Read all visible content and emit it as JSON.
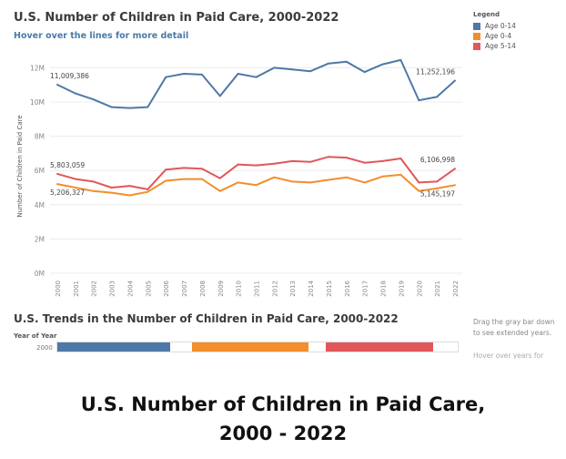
{
  "dashboard": {
    "title": "U.S. Number of Children in Paid Care, 2000-2022",
    "hover_hint": "Hover over the lines for more detail",
    "legend_title": "Legend",
    "legend": [
      {
        "label": "Age 0-14",
        "color": "#4e79a7"
      },
      {
        "label": "Age 0-4",
        "color": "#f28e2b"
      },
      {
        "label": "Age 5-14",
        "color": "#e15759"
      }
    ],
    "trend_title": "U.S. Trends in the Number of Children in Paid Care, 2000-2022",
    "year_of_year_label": "Year of Year",
    "timeline_year": "2000",
    "timeline_colors": [
      "#4e79a7",
      "#f28e2b",
      "#e15759"
    ],
    "drag_hint": "Drag the gray bar down to see extended years.",
    "drag_hint_cut": "Hover over years for more",
    "y_axis_title": "Number of Children in Paid Care"
  },
  "caption": {
    "line1": "U.S. Number of Children in Paid Care,",
    "line2": "2000 - 2022"
  },
  "chart_data": {
    "type": "line",
    "title": "U.S. Number of Children in Paid Care, 2000-2022",
    "ylabel": "Number of Children in Paid Care",
    "xlabel": "",
    "ylim": [
      0,
      12500000
    ],
    "yticks": [
      0,
      2000000,
      4000000,
      6000000,
      8000000,
      10000000,
      12000000
    ],
    "ytick_labels": [
      "0M",
      "2M",
      "4M",
      "6M",
      "8M",
      "10M",
      "12M"
    ],
    "grid": true,
    "legend_position": "top-right",
    "x": [
      "2000",
      "2001",
      "2002",
      "2003",
      "2004",
      "2005",
      "2006",
      "2007",
      "2008",
      "2009",
      "2010",
      "2011",
      "2012",
      "2013",
      "2014",
      "2015",
      "2016",
      "2017",
      "2018",
      "2019",
      "2020",
      "2021",
      "2022"
    ],
    "series": [
      {
        "name": "Age 0-14",
        "color": "#4e79a7",
        "values": [
          11009386,
          10500000,
          10150000,
          9700000,
          9650000,
          9700000,
          11450000,
          11650000,
          11600000,
          10350000,
          11650000,
          11450000,
          12000000,
          11900000,
          11800000,
          12250000,
          12350000,
          11750000,
          12200000,
          12450000,
          10100000,
          10300000,
          11252196
        ],
        "labels": [
          {
            "index": 0,
            "text": "11,009,386"
          },
          {
            "index": 22,
            "text": "11,252,196"
          }
        ]
      },
      {
        "name": "Age 5-14",
        "color": "#e15759",
        "values": [
          5803059,
          5500000,
          5350000,
          5000000,
          5100000,
          4900000,
          6050000,
          6150000,
          6100000,
          5550000,
          6350000,
          6300000,
          6400000,
          6550000,
          6500000,
          6800000,
          6750000,
          6450000,
          6550000,
          6700000,
          5300000,
          5350000,
          6106998
        ],
        "labels": [
          {
            "index": 0,
            "text": "5,803,059"
          },
          {
            "index": 22,
            "text": "6,106,998"
          }
        ]
      },
      {
        "name": "Age 0-4",
        "color": "#f28e2b",
        "values": [
          5206327,
          5000000,
          4800000,
          4700000,
          4550000,
          4750000,
          5400000,
          5500000,
          5500000,
          4800000,
          5300000,
          5150000,
          5600000,
          5350000,
          5300000,
          5450000,
          5600000,
          5300000,
          5650000,
          5750000,
          4800000,
          4950000,
          5145197
        ],
        "labels": [
          {
            "index": 0,
            "text": "5,206,327"
          },
          {
            "index": 22,
            "text": "5,145,197"
          }
        ]
      }
    ]
  }
}
